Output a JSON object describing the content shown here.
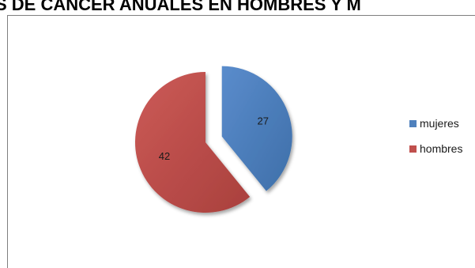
{
  "chart_data": {
    "type": "pie",
    "title": "S DE CÁNCER ANUALES EN HOMBRES Y M",
    "categories": [
      "mujeres",
      "hombres"
    ],
    "values": [
      27,
      42
    ],
    "data_labels": [
      "27",
      "42"
    ],
    "colors": [
      "#4f81bd",
      "#c0504d"
    ],
    "exploded": "mujeres",
    "legend": "right"
  }
}
